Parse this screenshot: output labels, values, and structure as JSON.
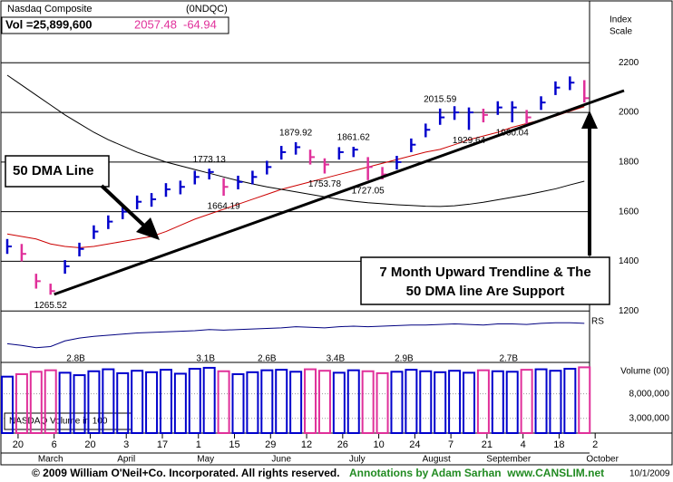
{
  "header": {
    "name": "Nasdaq Composite",
    "symbol": "(0NDQC)",
    "volume": "Vol =25,899,600",
    "price": "2057.48",
    "change": "-64.94",
    "scale_label": [
      "Index",
      "Scale"
    ]
  },
  "chart_data": {
    "type": "ohlc",
    "x": [
      0,
      4,
      8,
      12,
      16,
      20,
      24,
      28,
      32,
      36,
      40,
      44,
      48,
      52,
      56,
      60,
      64,
      68,
      72,
      76,
      80,
      84,
      88,
      92,
      96,
      100,
      104,
      108,
      112,
      116,
      120,
      124,
      128,
      132,
      136,
      140,
      144,
      148,
      152,
      156,
      160
    ],
    "values": [
      1460,
      1430,
      1320,
      1280,
      1380,
      1450,
      1520,
      1560,
      1600,
      1640,
      1650,
      1690,
      1700,
      1740,
      1760,
      1700,
      1720,
      1740,
      1780,
      1840,
      1860,
      1820,
      1790,
      1840,
      1850,
      1780,
      1750,
      1800,
      1870,
      1930,
      1980,
      2000,
      2000,
      1990,
      2020,
      2020,
      1980,
      2040,
      2100,
      2120,
      2057.48
    ],
    "highs": [
      1490,
      1470,
      1350,
      1310,
      1405,
      1475,
      1545,
      1585,
      1625,
      1665,
      1675,
      1715,
      1725,
      1765,
      1773.13,
      1735,
      1745,
      1765,
      1805,
      1865,
      1879.92,
      1850,
      1815,
      1860,
      1861.62,
      1820,
      1780,
      1825,
      1895,
      1955,
      2015.59,
      2025,
      2020,
      2015,
      2045,
      2045,
      2010,
      2065,
      2125,
      2145,
      2130
    ],
    "lows": [
      1430,
      1400,
      1290,
      1265.52,
      1350,
      1420,
      1490,
      1530,
      1570,
      1610,
      1620,
      1660,
      1670,
      1710,
      1730,
      1664.19,
      1690,
      1710,
      1750,
      1810,
      1830,
      1790,
      1753.78,
      1810,
      1820,
      1727.05,
      1730,
      1770,
      1840,
      1900,
      1950,
      1970,
      1929.64,
      1960,
      1990,
      1960.04,
      1950,
      2010,
      2070,
      2090,
      2040
    ],
    "up_color": "#0000cc",
    "down_color": "#e0309a",
    "ylim": [
      1000,
      2453
    ],
    "yticks": [
      1200,
      1400,
      1600,
      1800,
      2000,
      2200
    ],
    "grid": true,
    "xlim": [
      0,
      171
    ],
    "xticks": [
      {
        "value": 3,
        "label": "20"
      },
      {
        "value": 13,
        "label": "6"
      },
      {
        "value": 23,
        "label": "20"
      },
      {
        "value": 33,
        "label": "3"
      },
      {
        "value": 43,
        "label": "17"
      },
      {
        "value": 53,
        "label": "1"
      },
      {
        "value": 63,
        "label": "15"
      },
      {
        "value": 73,
        "label": "29"
      },
      {
        "value": 83,
        "label": "12"
      },
      {
        "value": 93,
        "label": "26"
      },
      {
        "value": 103,
        "label": "10"
      },
      {
        "value": 113,
        "label": "24"
      },
      {
        "value": 123,
        "label": "7"
      },
      {
        "value": 133,
        "label": "21"
      },
      {
        "value": 143,
        "label": "4"
      },
      {
        "value": 153,
        "label": "18"
      },
      {
        "value": 163,
        "label": "2"
      }
    ],
    "months": {
      "labels": [
        "March",
        "April",
        "May",
        "June",
        "July",
        "August",
        "September",
        "October"
      ],
      "x": [
        12,
        33,
        55,
        76,
        97,
        119,
        139,
        165
      ]
    },
    "moving_averages": [
      {
        "color": "#cc0000",
        "values": [
          1510,
          1500,
          1490,
          1470,
          1460,
          1455,
          1460,
          1470,
          1480,
          1490,
          1500,
          1520,
          1545,
          1570,
          1590,
          1610,
          1630,
          1650,
          1670,
          1690,
          1705,
          1720,
          1735,
          1750,
          1765,
          1780,
          1795,
          1810,
          1825,
          1840,
          1851,
          1870,
          1890,
          1905,
          1920,
          1940,
          1955,
          1970,
          1985,
          2005,
          2023
        ]
      },
      {
        "color": "#000000",
        "values": [
          2150,
          2110,
          2070,
          2030,
          1990,
          1955,
          1920,
          1890,
          1865,
          1840,
          1820,
          1800,
          1785,
          1770,
          1755,
          1740,
          1725,
          1712,
          1700,
          1690,
          1680,
          1670,
          1660,
          1650,
          1642,
          1636,
          1632,
          1628,
          1625,
          1622,
          1621,
          1624,
          1630,
          1638,
          1648,
          1658,
          1668,
          1680,
          1692,
          1708,
          1723
        ]
      }
    ],
    "price_labels": [
      {
        "x": 12,
        "value": 1265.52
      },
      {
        "x": 56,
        "value": 1773.13
      },
      {
        "x": 60,
        "value": 1664.19
      },
      {
        "x": 80,
        "value": 1879.92
      },
      {
        "x": 88,
        "value": 1753.78
      },
      {
        "x": 96,
        "value": 1861.62
      },
      {
        "x": 100,
        "value": 1727.05
      },
      {
        "x": 120,
        "value": 2015.59
      },
      {
        "x": 128,
        "value": 1929.64
      },
      {
        "x": 140,
        "value": 1960.04
      }
    ],
    "trendline": {
      "x": [
        13,
        171
      ],
      "values": [
        1267,
        2088
      ]
    },
    "rs": {
      "label": "RS",
      "color": "#000080",
      "ylim": [
        0,
        80
      ],
      "values": [
        25,
        22,
        18,
        20,
        30,
        35,
        38,
        40,
        42,
        44,
        45,
        46,
        47,
        48,
        50,
        49,
        50,
        51,
        52,
        53,
        55,
        54,
        53,
        55,
        56,
        55,
        56,
        57,
        58,
        58,
        59,
        60,
        59,
        58,
        60,
        60,
        59,
        61,
        62,
        62,
        61
      ]
    },
    "volume": {
      "label": "Volume (00)",
      "note": "NASDAQ Volume in 100",
      "ylim": [
        0,
        14400000
      ],
      "yticks": [
        {
          "value": 8000000,
          "label": "8,000,000"
        },
        {
          "value": 3000000,
          "label": "3,000,000"
        }
      ],
      "values": [
        11500000,
        12000000,
        12500000,
        12800000,
        12300000,
        11800000,
        12600000,
        13000000,
        12200000,
        12700000,
        12400000,
        12900000,
        12100000,
        13100000,
        13300000,
        12600000,
        12000000,
        12400000,
        12800000,
        12900000,
        12500000,
        13000000,
        12700000,
        12300000,
        12800000,
        12600000,
        12200000,
        12500000,
        12900000,
        12600000,
        12400000,
        12700000,
        12300000,
        12800000,
        12600000,
        12500000,
        12900000,
        13000000,
        12700000,
        13100000,
        13400000
      ],
      "annotations": [
        {
          "x": 19,
          "label": "2.8B"
        },
        {
          "x": 55,
          "label": "3.1B"
        },
        {
          "x": 72,
          "label": "2.6B"
        },
        {
          "x": 91,
          "label": "3.4B"
        },
        {
          "x": 110,
          "label": "2.9B"
        },
        {
          "x": 139,
          "label": "2.7B"
        }
      ]
    }
  },
  "callouts": {
    "dma": "50 DMA Line",
    "support": [
      "7 Month Upward Trendline & The",
      "50 DMA line Are Support"
    ]
  },
  "footer": {
    "copyright": "© 2009 William O'Neil+Co. Incorporated. All rights reserved.",
    "annotations": "Annotations by Adam Sarhan  www.CANSLIM.net",
    "date": "10/1/2009"
  }
}
